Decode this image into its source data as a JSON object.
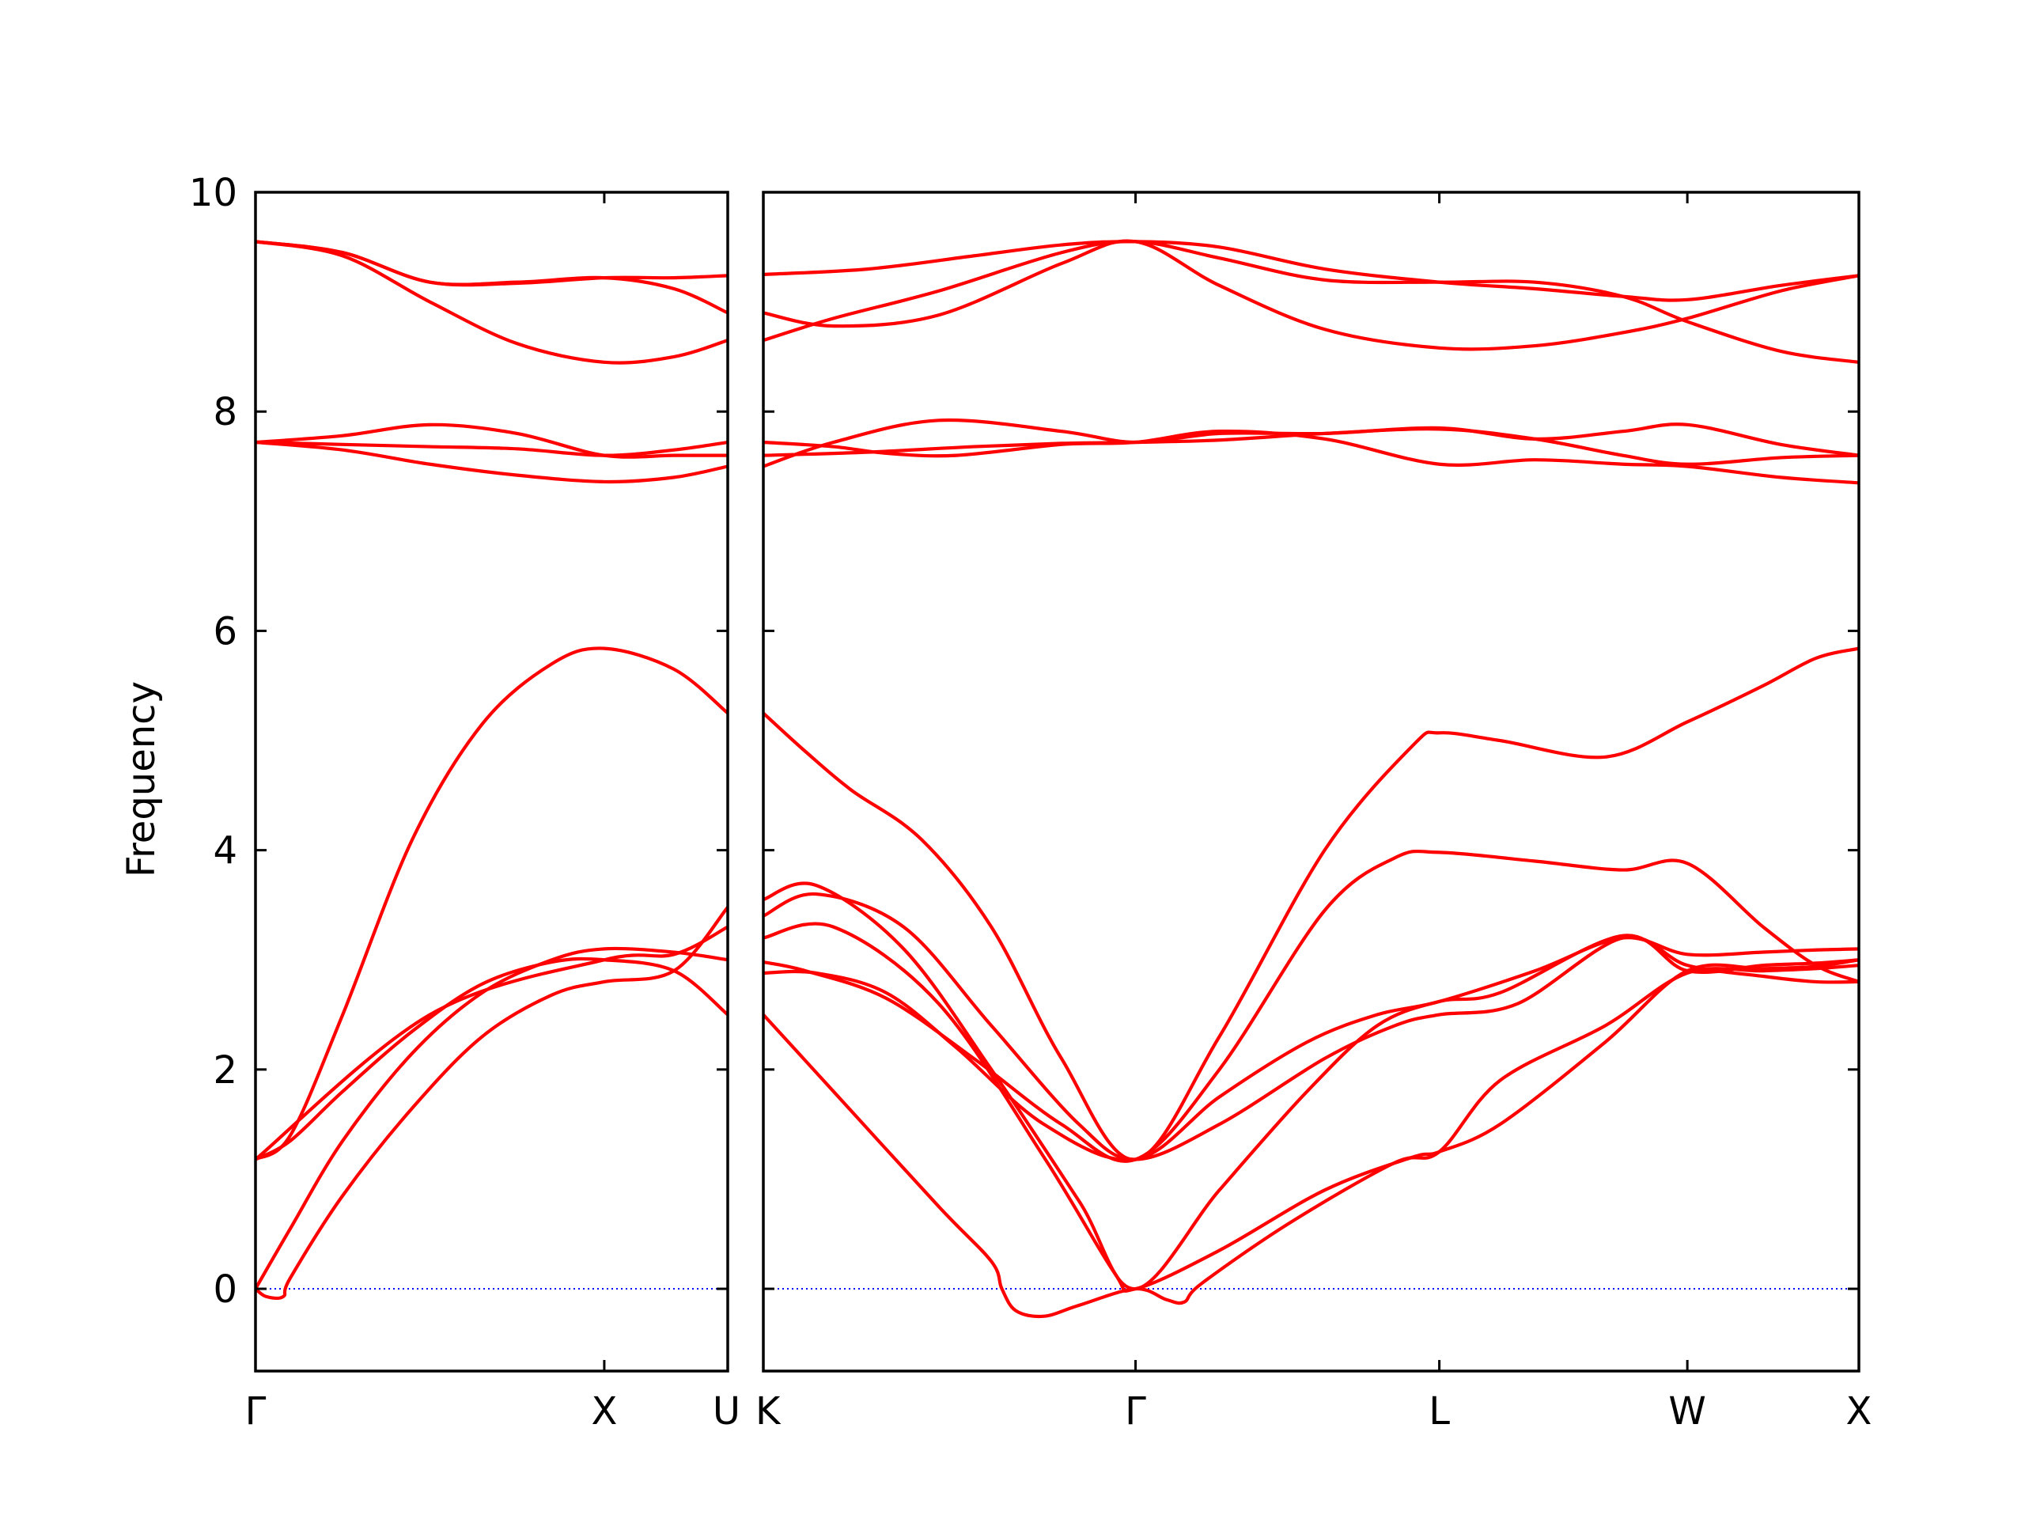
{
  "chart_data": {
    "type": "line",
    "title": "",
    "xlabel": "",
    "ylabel": "Frequency",
    "ylim": [
      -0.75,
      10
    ],
    "yticks": [
      0,
      2,
      4,
      6,
      8,
      10
    ],
    "ytick_labels": [
      "0",
      "2",
      "4",
      "6",
      "8",
      "10"
    ],
    "xtick_labels": [
      "Γ",
      "X",
      "U",
      "K",
      "Γ",
      "L",
      "W",
      "X"
    ],
    "line_color": "#ff0000",
    "zero_line_color": "#0000ff",
    "panels": [
      {
        "path": [
          "Γ",
          "X",
          "U"
        ],
        "xlim": [
          0,
          1.354
        ],
        "ticks": [
          {
            "x": 0,
            "label": "Γ"
          },
          {
            "x": 1,
            "label": "X"
          },
          {
            "x": 1.354,
            "label": "U"
          }
        ],
        "series": [
          {
            "x": [
              0,
              0.25,
              0.5,
              0.75,
              1,
              1.2,
              1.354
            ],
            "y": [
              9.55,
              9.45,
              9.18,
              9.17,
              9.22,
              9.22,
              9.24
            ]
          },
          {
            "x": [
              0,
              0.25,
              0.5,
              0.75,
              1,
              1.2,
              1.354
            ],
            "y": [
              9.55,
              9.42,
              9.0,
              8.62,
              8.45,
              8.5,
              8.65
            ]
          },
          {
            "x": [
              0,
              0.25,
              0.5,
              0.75,
              1,
              1.2,
              1.354
            ],
            "y": [
              9.55,
              9.45,
              9.18,
              9.18,
              9.22,
              9.12,
              8.9
            ]
          },
          {
            "x": [
              0,
              0.25,
              0.5,
              0.75,
              1,
              1.2,
              1.354
            ],
            "y": [
              7.72,
              7.78,
              7.88,
              7.8,
              7.6,
              7.6,
              7.6
            ]
          },
          {
            "x": [
              0,
              0.25,
              0.5,
              0.75,
              1,
              1.2,
              1.354
            ],
            "y": [
              7.72,
              7.65,
              7.52,
              7.42,
              7.36,
              7.4,
              7.5
            ]
          },
          {
            "x": [
              0,
              0.25,
              0.5,
              0.75,
              1,
              1.2,
              1.354
            ],
            "y": [
              7.72,
              7.7,
              7.68,
              7.66,
              7.6,
              7.65,
              7.72
            ]
          },
          {
            "x": [
              0,
              0.1,
              0.25,
              0.45,
              0.65,
              0.85,
              1,
              1.2,
              1.354
            ],
            "y": [
              1.18,
              1.4,
              2.5,
              4.1,
              5.15,
              5.7,
              5.84,
              5.65,
              5.25
            ]
          },
          {
            "x": [
              0,
              0.1,
              0.25,
              0.45,
              0.65,
              0.85,
              1,
              1.2,
              1.354
            ],
            "y": [
              1.18,
              1.35,
              1.8,
              2.35,
              2.78,
              2.98,
              3.0,
              2.9,
              2.5
            ]
          },
          {
            "x": [
              0,
              0.1,
              0.25,
              0.45,
              0.65,
              0.85,
              1,
              1.2,
              1.354
            ],
            "y": [
              0.0,
              0.55,
              1.35,
              2.15,
              2.7,
              3.0,
              3.1,
              3.07,
              3.0
            ]
          },
          {
            "x": [
              0,
              0.03,
              0.08,
              0.1,
              0.25,
              0.45,
              0.65,
              0.85,
              1,
              1.2,
              1.354
            ],
            "y": [
              0.0,
              -0.07,
              -0.07,
              0.1,
              0.85,
              1.65,
              2.3,
              2.68,
              2.8,
              2.9,
              3.48
            ]
          },
          {
            "x": [
              0,
              0.5,
              1,
              1.2,
              1.354
            ],
            "y": [
              1.18,
              2.5,
              3.0,
              3.05,
              3.3
            ]
          }
        ]
      },
      {
        "path": [
          "K",
          "Γ",
          "L",
          "W",
          "X"
        ],
        "xlim": [
          0,
          3.123
        ],
        "ticks": [
          {
            "x": 0,
            "label": "K"
          },
          {
            "x": 1.061,
            "label": "Γ"
          },
          {
            "x": 1.927,
            "label": "L"
          },
          {
            "x": 2.634,
            "label": "W"
          },
          {
            "x": 3.123,
            "label": "X"
          }
        ],
        "series": [
          {
            "x": [
              0,
              0.3,
              0.6,
              0.85,
              1.061,
              1.3,
              1.6,
              1.927,
              2.2,
              2.45,
              2.634,
              2.9,
              3.123
            ],
            "y": [
              9.25,
              9.3,
              9.42,
              9.52,
              9.55,
              9.5,
              9.3,
              9.18,
              9.12,
              9.05,
              9.02,
              9.15,
              9.24
            ]
          },
          {
            "x": [
              0,
              0.2,
              0.5,
              0.85,
              1.061,
              1.3,
              1.6,
              1.927,
              2.2,
              2.45,
              2.634,
              2.9,
              3.123
            ],
            "y": [
              8.65,
              8.85,
              9.1,
              9.45,
              9.55,
              9.4,
              9.2,
              9.18,
              9.18,
              9.05,
              8.82,
              8.55,
              8.45
            ]
          },
          {
            "x": [
              0,
              0.2,
              0.5,
              0.85,
              1.061,
              1.3,
              1.6,
              1.927,
              2.2,
              2.45,
              2.634,
              2.9,
              3.123
            ],
            "y": [
              8.9,
              8.78,
              8.88,
              9.35,
              9.55,
              9.15,
              8.75,
              8.58,
              8.6,
              8.72,
              8.85,
              9.1,
              9.24
            ]
          },
          {
            "x": [
              0,
              0.2,
              0.5,
              0.85,
              1.061,
              1.3,
              1.6,
              1.927,
              2.2,
              2.45,
              2.634,
              2.9,
              3.123
            ],
            "y": [
              7.5,
              7.72,
              7.92,
              7.82,
              7.72,
              7.8,
              7.8,
              7.85,
              7.75,
              7.82,
              7.88,
              7.7,
              7.6
            ]
          },
          {
            "x": [
              0,
              0.2,
              0.35,
              0.55,
              0.85,
              1.061,
              1.3,
              1.6,
              1.927,
              2.2,
              2.45,
              2.634,
              2.9,
              3.123
            ],
            "y": [
              7.72,
              7.68,
              7.62,
              7.6,
              7.7,
              7.72,
              7.82,
              7.75,
              7.52,
              7.56,
              7.52,
              7.5,
              7.4,
              7.35
            ]
          },
          {
            "x": [
              0,
              0.3,
              0.6,
              0.85,
              1.061,
              1.3,
              1.6,
              1.927,
              2.2,
              2.45,
              2.634,
              2.9,
              3.123
            ],
            "y": [
              7.6,
              7.63,
              7.68,
              7.71,
              7.72,
              7.74,
              7.8,
              7.84,
              7.75,
              7.6,
              7.52,
              7.58,
              7.6
            ]
          },
          {
            "x": [
              0,
              0.12,
              0.25,
              0.45,
              0.65,
              0.85,
              1.061,
              1.3,
              1.6,
              1.85,
              1.927,
              2.1,
              2.4,
              2.634,
              2.85,
              3.0,
              3.123
            ],
            "y": [
              5.25,
              4.9,
              4.55,
              4.1,
              3.3,
              2.1,
              1.18,
              2.3,
              4.0,
              4.95,
              5.07,
              5.0,
              4.85,
              5.17,
              5.5,
              5.75,
              5.84
            ]
          },
          {
            "x": [
              0,
              0.15,
              0.35,
              0.55,
              0.8,
              1.061,
              1.3,
              1.55,
              1.75,
              1.927,
              2.2,
              2.45,
              2.634,
              2.85,
              3.0,
              3.123
            ],
            "y": [
              2.88,
              2.88,
              2.7,
              2.2,
              1.5,
              1.18,
              1.75,
              2.25,
              2.5,
              2.62,
              2.9,
              3.2,
              3.05,
              3.07,
              3.09,
              3.1
            ]
          },
          {
            "x": [
              0,
              0.12,
              0.35,
              0.6,
              0.85,
              1.061,
              1.3,
              1.6,
              1.8,
              1.927,
              2.2,
              2.45,
              2.634,
              2.85,
              3.0,
              3.123
            ],
            "y": [
              2.98,
              2.9,
              2.65,
              2.1,
              1.5,
              1.18,
              2.0,
              3.45,
              3.93,
              3.98,
              3.9,
              3.82,
              3.88,
              3.3,
              2.95,
              2.8
            ]
          },
          {
            "x": [
              0,
              0.15,
              0.4,
              0.65,
              0.9,
              1.061,
              1.3,
              1.6,
              1.8,
              1.927,
              2.15,
              2.45,
              2.634,
              2.85,
              3.0,
              3.123
            ],
            "y": [
              3.4,
              3.6,
              3.3,
              2.4,
              1.5,
              1.18,
              1.5,
              2.1,
              2.4,
              2.5,
              2.6,
              3.2,
              2.95,
              2.85,
              2.8,
              2.8
            ]
          },
          {
            "x": [
              0,
              0.15,
              0.4,
              0.65,
              0.9,
              1.061,
              1.3,
              1.55,
              1.75,
              1.927,
              2.1,
              2.45,
              2.634,
              2.85,
              3.0,
              3.123
            ],
            "y": [
              3.55,
              3.68,
              3.1,
              2.0,
              0.8,
              0.0,
              0.9,
              1.8,
              2.4,
              2.62,
              2.7,
              3.22,
              2.9,
              2.95,
              2.97,
              3.0
            ]
          },
          {
            "x": [
              0,
              0.2,
              0.5,
              0.65,
              0.68,
              0.72,
              0.8,
              0.9,
              1.061,
              1.15,
              1.2,
              1.25,
              1.5,
              1.8,
              1.927,
              2.1,
              2.4,
              2.634,
              2.85,
              3.0,
              3.123
            ],
            "y": [
              2.5,
              1.8,
              0.75,
              0.25,
              0.0,
              -0.2,
              -0.25,
              -0.15,
              0.0,
              -0.1,
              -0.12,
              0.05,
              0.6,
              1.15,
              1.25,
              1.9,
              2.4,
              2.88,
              2.9,
              2.92,
              2.95
            ]
          },
          {
            "x": [
              0,
              0.2,
              0.5,
              0.8,
              1.0,
              1.061,
              1.3,
              1.6,
              1.85,
              1.927,
              2.1,
              2.4,
              2.634,
              2.85,
              3.0,
              3.123
            ],
            "y": [
              3.2,
              3.3,
              2.6,
              1.2,
              0.15,
              0.0,
              0.35,
              0.9,
              1.2,
              1.25,
              1.5,
              2.25,
              2.9,
              2.92,
              2.94,
              3.0
            ]
          }
        ]
      }
    ]
  }
}
